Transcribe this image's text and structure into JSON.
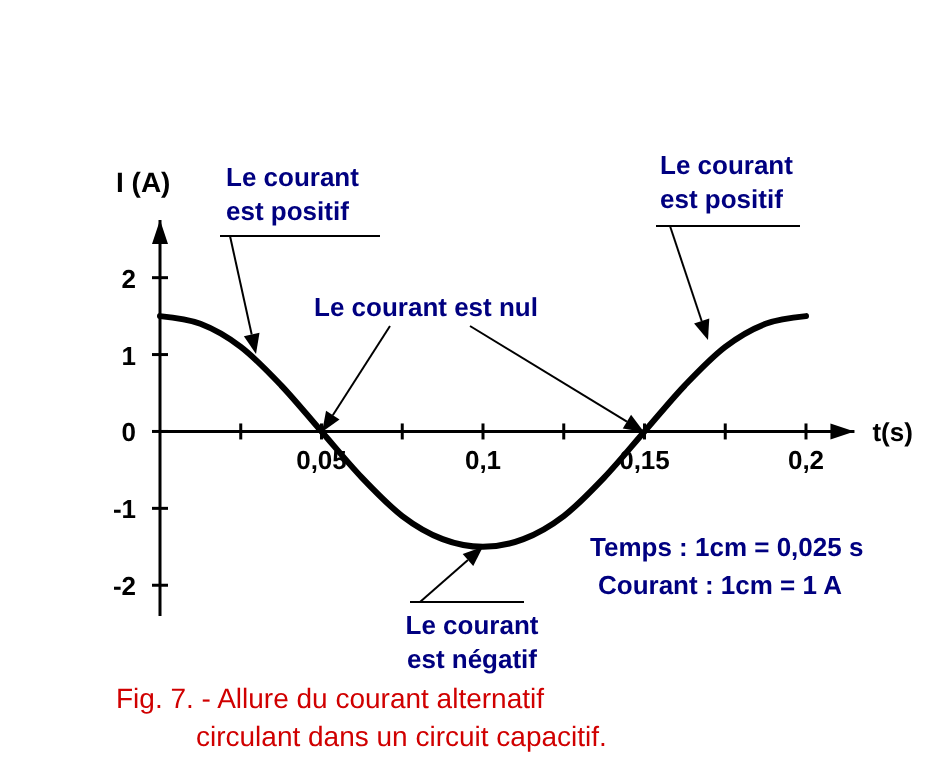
{
  "chart_data": {
    "type": "line",
    "title": "Fig. 7. - Allure du courant alternatif\ncirculant dans un circuit capacitif.",
    "xlabel": "t(s)",
    "ylabel": "I (A)",
    "x": [
      0,
      0.0125,
      0.025,
      0.0375,
      0.05,
      0.0625,
      0.075,
      0.0875,
      0.1,
      0.1125,
      0.125,
      0.1375,
      0.15,
      0.1625,
      0.175,
      0.1875,
      0.2
    ],
    "series": [
      {
        "color": "#000000",
        "values": [
          1.5,
          1.4,
          1.1,
          0.6,
          0,
          -0.6,
          -1.1,
          -1.4,
          -1.5,
          -1.4,
          -1.1,
          -0.6,
          0,
          0.6,
          1.1,
          1.4,
          1.5
        ]
      }
    ],
    "xlim": [
      0,
      0.215
    ],
    "ylim": [
      -2.4,
      2.75
    ],
    "xticks": [
      {
        "value": 0.025,
        "label": null
      },
      {
        "value": 0.05,
        "label": "0,05"
      },
      {
        "value": 0.075,
        "label": null
      },
      {
        "value": 0.1,
        "label": "0,1"
      },
      {
        "value": 0.125,
        "label": null
      },
      {
        "value": 0.15,
        "label": "0,15"
      },
      {
        "value": 0.175,
        "label": null
      },
      {
        "value": 0.2,
        "label": "0,2"
      }
    ],
    "yticks": [
      -2,
      -1,
      0,
      1,
      2
    ],
    "grid": false,
    "marker": "none",
    "line_style": "solid",
    "annotations": [
      "Le courant est positif",
      "Le courant est nul",
      "Le courant est positif",
      {
        "text": "Le courant est négatif",
        "x": 0.1,
        "y": -1.5
      },
      "Temps : 1cm = 0,025 s",
      "Courant : 1cm = 1 A"
    ]
  }
}
